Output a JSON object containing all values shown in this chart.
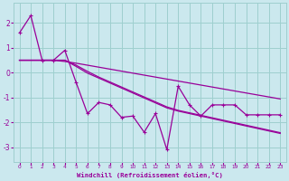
{
  "background_color": "#cbe8ee",
  "grid_color": "#9ecfcf",
  "line_color": "#990099",
  "xlabel": "Windchill (Refroidissement éolien,°C)",
  "xlim": [
    -0.5,
    23.5
  ],
  "ylim": [
    -3.6,
    2.8
  ],
  "yticks": [
    -3,
    -2,
    -1,
    0,
    1,
    2
  ],
  "xticks": [
    0,
    1,
    2,
    3,
    4,
    5,
    6,
    7,
    8,
    9,
    10,
    11,
    12,
    13,
    14,
    15,
    16,
    17,
    18,
    19,
    20,
    21,
    22,
    23
  ],
  "series_jagged": [
    1.6,
    2.3,
    0.5,
    0.5,
    0.9,
    -0.4,
    -1.65,
    -1.2,
    -1.3,
    -1.8,
    -1.75,
    -2.4,
    -1.65,
    -3.1,
    -0.55,
    -1.3,
    -1.75,
    -1.3,
    -1.3,
    -1.3,
    -1.7,
    -1.7,
    -1.7,
    -1.7
  ],
  "series_diag1": [
    0.5,
    0.5,
    0.5,
    0.5,
    0.5,
    0.3,
    0.05,
    -0.18,
    -0.38,
    -0.58,
    -0.78,
    -0.98,
    -1.18,
    -1.38,
    -1.52,
    -1.62,
    -1.72,
    -1.82,
    -1.92,
    -2.02,
    -2.12,
    -2.22,
    -2.32,
    -2.42
  ],
  "series_diag2": [
    0.5,
    0.5,
    0.5,
    0.5,
    0.5,
    0.25,
    -0.02,
    -0.22,
    -0.42,
    -0.62,
    -0.82,
    -1.02,
    -1.22,
    -1.42,
    -1.55,
    -1.65,
    -1.75,
    -1.85,
    -1.95,
    -2.05,
    -2.15,
    -2.25,
    -2.35,
    -2.45
  ],
  "series_flat": [
    0.5,
    0.5,
    0.5,
    0.5,
    0.45,
    0.38,
    0.3,
    0.22,
    0.14,
    0.06,
    -0.02,
    -0.1,
    -0.18,
    -0.26,
    -0.34,
    -0.42,
    -0.5,
    -0.58,
    -0.66,
    -0.74,
    -0.82,
    -0.9,
    -0.98,
    -1.06
  ]
}
